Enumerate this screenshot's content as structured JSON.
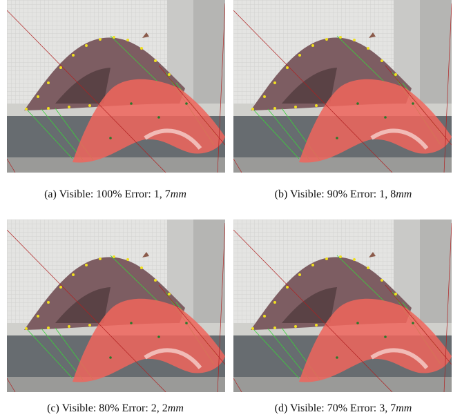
{
  "subfigures": [
    {
      "label": "(a)",
      "visible": "Visible: 100%",
      "error": "Error: 1, 7",
      "unit": "mm"
    },
    {
      "label": "(b)",
      "visible": "Visible: 90%",
      "error": "Error: 1, 8",
      "unit": "mm"
    },
    {
      "label": "(c)",
      "visible": "Visible: 80%",
      "error": "Error: 2, 2",
      "unit": "mm"
    },
    {
      "label": "(d)",
      "visible": "Visible: 70%",
      "error": "Error: 3, 7",
      "unit": "mm"
    }
  ]
}
